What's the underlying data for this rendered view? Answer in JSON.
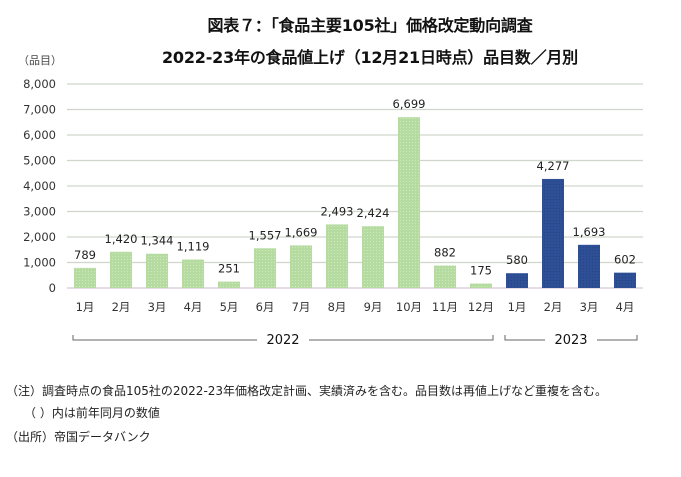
{
  "title": {
    "line1": "図表７：「食品主要105社」価格改定動向調査",
    "line2": "2022-23年の食品値上げ（12月21日時点）品目数／月別"
  },
  "chart_data": {
    "type": "bar",
    "title": "2022-23年の食品値上げ（12月21日時点）品目数／月別",
    "ylabel": "（品目）",
    "xlabel": "",
    "ylim": [
      0,
      8000
    ],
    "yticks": [
      0,
      1000,
      2000,
      3000,
      4000,
      5000,
      6000,
      7000,
      8000
    ],
    "ytick_labels": [
      "0",
      "1,000",
      "2,000",
      "3,000",
      "4,000",
      "5,000",
      "6,000",
      "7,000",
      "8,000"
    ],
    "grid": true,
    "categories": [
      "1月",
      "2月",
      "3月",
      "4月",
      "5月",
      "6月",
      "7月",
      "8月",
      "9月",
      "10月",
      "11月",
      "12月",
      "1月",
      "2月",
      "3月",
      "4月"
    ],
    "values": [
      789,
      1420,
      1344,
      1119,
      251,
      1557,
      1669,
      2493,
      2424,
      6699,
      882,
      175,
      580,
      4277,
      1693,
      602
    ],
    "value_labels": [
      "789",
      "1,420",
      "1,344",
      "1,119",
      "251",
      "1,557",
      "1,669",
      "2,493",
      "2,424",
      "6,699",
      "882",
      "175",
      "580",
      "4,277",
      "1,693",
      "602"
    ],
    "groups": [
      {
        "name": "2022",
        "start": 0,
        "end": 11,
        "color": "#b5dba0"
      },
      {
        "name": "2023",
        "start": 12,
        "end": 15,
        "color": "#2e4f96"
      }
    ],
    "legend": "none"
  },
  "notes": {
    "note1": "（注）調査時点の食品105社の2022-23年価格改定計画、実績済みを含む。品目数は再値上げなど重複を含む。",
    "note2": "（ ）内は前年同月の数値",
    "note3": "（出所）帝国データバンク"
  }
}
